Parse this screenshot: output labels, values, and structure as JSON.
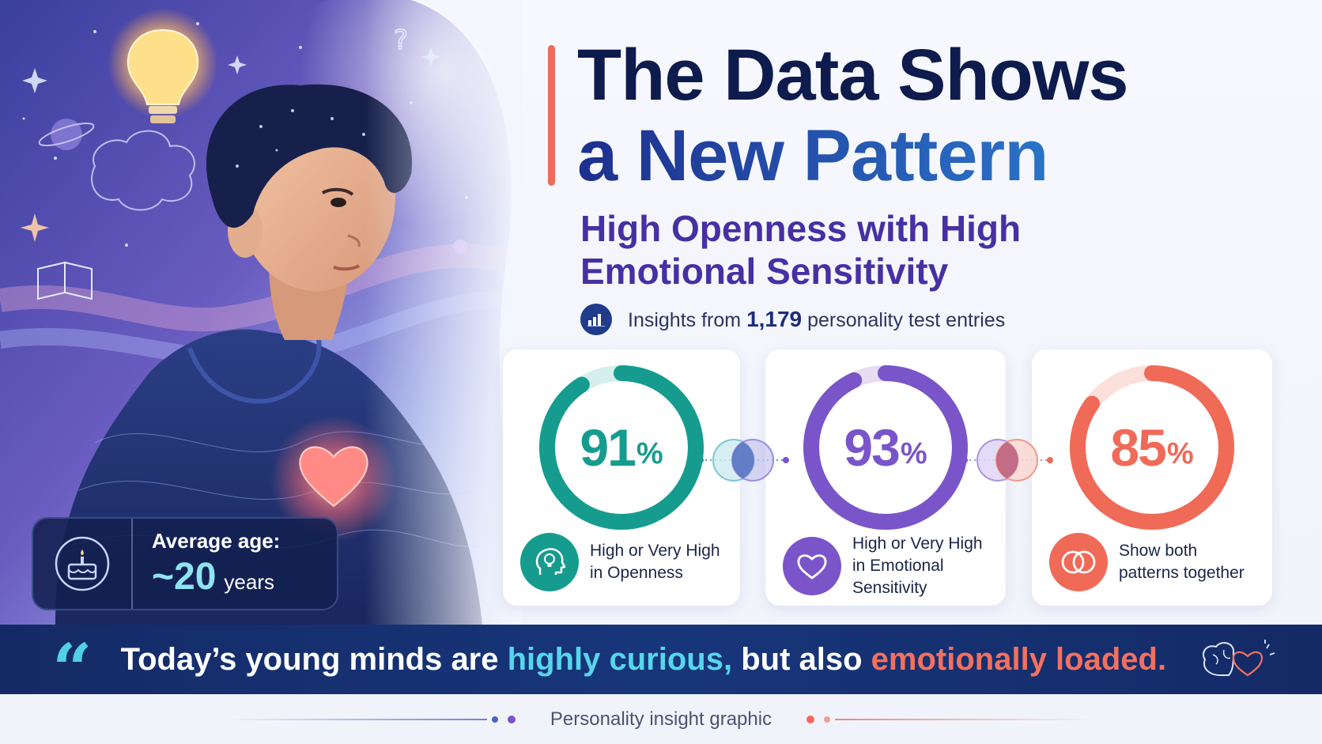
{
  "title": {
    "line1": "The Data Shows",
    "line2": "a New Pattern"
  },
  "subtitle": {
    "line1": "High Openness with High",
    "line2": "Emotional Sensitivity"
  },
  "insight": {
    "icon": "bar-chart-icon",
    "prefix": "Insights from ",
    "count": "1,179",
    "suffix": " personality test entries"
  },
  "stats": [
    {
      "value": "91",
      "percent": 91,
      "sign": "%",
      "line1": "High or Very High",
      "line2": "in Openness",
      "color": "#169c8f",
      "track": "#d6efec",
      "icon": "head-lightbulb-icon"
    },
    {
      "value": "93",
      "percent": 93,
      "sign": "%",
      "line1": "High or Very High",
      "line2": "in Emotional Sensitivity",
      "color": "#7a55c9",
      "track": "#e6ddf5",
      "icon": "heart-icon"
    },
    {
      "value": "85",
      "percent": 85,
      "sign": "%",
      "line1": "Show both",
      "line2": "patterns together",
      "color": "#f06a58",
      "track": "#fbe0dc",
      "icon": "overlapping-circles-icon"
    }
  ],
  "age": {
    "icon": "birthday-cake-icon",
    "label": "Average age:",
    "value": "~20",
    "unit": "years"
  },
  "quote": {
    "mark": "“",
    "part1": "Today’s young minds are ",
    "highlight1": "highly curious,",
    "part2": " but also ",
    "highlight2": "emotionally loaded.",
    "icon": "brain-heart-icon"
  },
  "footer": {
    "text": "Personality insight graphic"
  },
  "colors": {
    "navy": "#0e1b4d",
    "purple": "#4630a3",
    "teal": "#169c8f",
    "violet": "#7a55c9",
    "coral": "#f06a58",
    "banner": "#142a66"
  }
}
